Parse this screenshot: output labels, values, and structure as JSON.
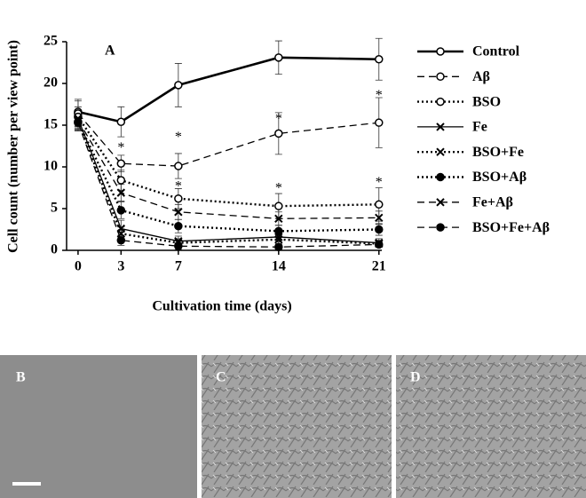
{
  "chart_data": {
    "type": "line",
    "panel_label": "A",
    "x_label": "Cultivation time (days)",
    "y_label": "Cell count (number per view point)",
    "x": [
      0,
      3,
      7,
      14,
      21
    ],
    "xlim": [
      -0.8,
      21.2
    ],
    "xticks": [
      0,
      3,
      7,
      14,
      21
    ],
    "ylim": [
      0,
      25
    ],
    "yticks": [
      0,
      5,
      10,
      15,
      20,
      25
    ],
    "series": [
      {
        "name": "Control",
        "color": "#000000",
        "dash": "solid",
        "marker": "open",
        "width": 2.6,
        "values": [
          16.6,
          15.4,
          19.8,
          23.1,
          22.9
        ],
        "errors": [
          1.5,
          1.8,
          2.6,
          2.0,
          2.5
        ]
      },
      {
        "name": "Aβ",
        "color": "#000000",
        "dash": "dashed",
        "marker": "open",
        "width": 1.3,
        "values": [
          16.4,
          10.4,
          10.1,
          14.0,
          15.3
        ],
        "errors": [
          1.5,
          1.0,
          1.5,
          2.5,
          3.0
        ]
      },
      {
        "name": "BSO",
        "color": "#000000",
        "dash": "dotted",
        "marker": "open",
        "width": 2.4,
        "values": [
          16.0,
          8.4,
          6.2,
          5.3,
          5.5
        ],
        "errors": [
          1.2,
          1.2,
          1.2,
          1.5,
          2.0
        ]
      },
      {
        "name": "Fe",
        "color": "#000000",
        "dash": "solid",
        "marker": "x",
        "width": 1.3,
        "values": [
          15.8,
          2.6,
          1.1,
          1.6,
          0.9
        ],
        "errors": [
          1.0,
          1.0,
          0.6,
          0.6,
          0.5
        ]
      },
      {
        "name": "BSO+Fe",
        "color": "#000000",
        "dash": "dotted",
        "marker": "x",
        "width": 2.4,
        "values": [
          15.5,
          2.0,
          0.9,
          1.3,
          0.8
        ],
        "errors": [
          1.0,
          0.8,
          0.5,
          0.5,
          0.4
        ]
      },
      {
        "name": "BSO+Aβ",
        "color": "#000000",
        "dash": "dotted",
        "marker": "filled",
        "width": 2.4,
        "values": [
          15.4,
          4.8,
          2.9,
          2.3,
          2.5
        ],
        "errors": [
          1.0,
          1.0,
          0.8,
          0.7,
          0.7
        ]
      },
      {
        "name": "Fe+Aβ",
        "color": "#000000",
        "dash": "dashed",
        "marker": "x",
        "width": 1.3,
        "values": [
          15.6,
          6.9,
          4.6,
          3.8,
          3.9
        ],
        "errors": [
          1.0,
          1.0,
          0.9,
          0.8,
          0.8
        ]
      },
      {
        "name": "BSO+Fe+Aβ",
        "color": "#000000",
        "dash": "dashed",
        "marker": "filled",
        "width": 1.3,
        "values": [
          15.3,
          1.2,
          0.5,
          0.4,
          0.7
        ],
        "errors": [
          1.0,
          0.6,
          0.4,
          0.3,
          0.3
        ]
      }
    ],
    "annotations": [
      {
        "text": "*",
        "x": 3,
        "y": 12.6
      },
      {
        "text": "*",
        "x": 7,
        "y": 13.9
      },
      {
        "text": "*",
        "x": 7,
        "y": 8.0
      },
      {
        "text": "*",
        "x": 14,
        "y": 16.1
      },
      {
        "text": "*",
        "x": 14,
        "y": 7.8
      },
      {
        "text": "*",
        "x": 21,
        "y": 18.9
      },
      {
        "text": "*",
        "x": 21,
        "y": 8.5
      }
    ]
  },
  "panels": [
    {
      "label": "B"
    },
    {
      "label": "C"
    },
    {
      "label": "D"
    }
  ]
}
